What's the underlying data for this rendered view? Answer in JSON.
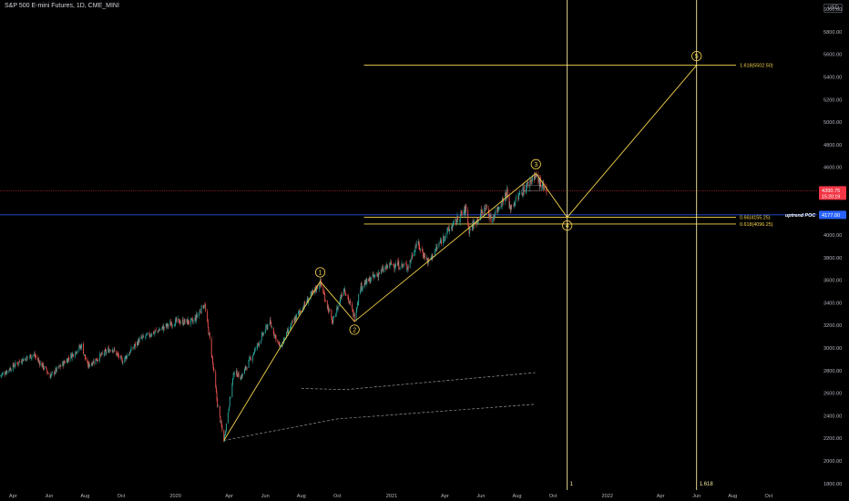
{
  "header": {
    "title": "S&P 500 E-mini Futures, 1D, CME_MINI",
    "currency": "USD"
  },
  "chart_data": {
    "type": "candlestick",
    "title": "S&P 500 E-mini Futures, 1D, CME_MINI",
    "y_ticks": [
      1800,
      2000,
      2200,
      2400,
      2600,
      2800,
      3000,
      3200,
      3400,
      3600,
      3800,
      4000,
      4200,
      4400,
      4600,
      4800,
      5000,
      5200,
      5400,
      5600,
      5800,
      6000
    ],
    "y_tick_labels": [
      "1800.00",
      "2000.00",
      "2200.00",
      "2400.00",
      "2600.00",
      "2800.00",
      "3000.00",
      "3200.00",
      "3400.00",
      "3600.00",
      "3800.00",
      "4000.00",
      "4200.00",
      "4400.00",
      "4600.00",
      "4800.00",
      "5000.00",
      "5200.00",
      "5400.00",
      "5600.00",
      "5800.00",
      "6000.00"
    ],
    "ylim": [
      1740,
      6080
    ],
    "x_range": [
      "2019-03-10",
      "2022-12-22"
    ],
    "x_ticks": [
      {
        "date": "2019-04-01",
        "label": "Apr"
      },
      {
        "date": "2019-06-01",
        "label": "Jun"
      },
      {
        "date": "2019-08-01",
        "label": "Aug"
      },
      {
        "date": "2019-10-01",
        "label": "Oct"
      },
      {
        "date": "2020-01-01",
        "label": "2020"
      },
      {
        "date": "2020-04-01",
        "label": "Apr"
      },
      {
        "date": "2020-06-01",
        "label": "Jun"
      },
      {
        "date": "2020-08-01",
        "label": "Aug"
      },
      {
        "date": "2020-10-01",
        "label": "Oct"
      },
      {
        "date": "2021-01-01",
        "label": "2021"
      },
      {
        "date": "2021-04-01",
        "label": "Apr"
      },
      {
        "date": "2021-06-01",
        "label": "Jun"
      },
      {
        "date": "2021-08-01",
        "label": "Aug"
      },
      {
        "date": "2021-10-01",
        "label": "Oct"
      },
      {
        "date": "2022-01-01",
        "label": "2022"
      },
      {
        "date": "2022-04-01",
        "label": "Apr"
      },
      {
        "date": "2022-06-01",
        "label": "Jun"
      },
      {
        "date": "2022-08-01",
        "label": "Aug"
      },
      {
        "date": "2022-10-01",
        "label": "Oct"
      }
    ],
    "price_path": [
      [
        "2019-03-10",
        2750
      ],
      [
        "2019-04-15",
        2890
      ],
      [
        "2019-05-06",
        2940
      ],
      [
        "2019-06-03",
        2750
      ],
      [
        "2019-07-26",
        3020
      ],
      [
        "2019-08-05",
        2840
      ],
      [
        "2019-09-15",
        3000
      ],
      [
        "2019-10-03",
        2880
      ],
      [
        "2019-11-01",
        3070
      ],
      [
        "2019-12-31",
        3230
      ],
      [
        "2020-01-31",
        3230
      ],
      [
        "2020-02-19",
        3390
      ],
      [
        "2020-03-01",
        3000
      ],
      [
        "2020-03-12",
        2500
      ],
      [
        "2020-03-23",
        2180
      ],
      [
        "2020-04-09",
        2790
      ],
      [
        "2020-04-21",
        2740
      ],
      [
        "2020-06-08",
        3230
      ],
      [
        "2020-06-26",
        3000
      ],
      [
        "2020-07-20",
        3250
      ],
      [
        "2020-09-02",
        3580
      ],
      [
        "2020-09-23",
        3220
      ],
      [
        "2020-10-12",
        3540
      ],
      [
        "2020-10-30",
        3270
      ],
      [
        "2020-11-09",
        3540
      ],
      [
        "2020-12-31",
        3740
      ],
      [
        "2021-01-29",
        3720
      ],
      [
        "2021-02-12",
        3930
      ],
      [
        "2021-03-04",
        3760
      ],
      [
        "2021-04-01",
        4000
      ],
      [
        "2021-05-07",
        4230
      ],
      [
        "2021-05-12",
        4040
      ],
      [
        "2021-06-10",
        4250
      ],
      [
        "2021-06-18",
        4130
      ],
      [
        "2021-07-15",
        4380
      ],
      [
        "2021-07-19",
        4230
      ],
      [
        "2021-08-31",
        4530
      ],
      [
        "2021-09-09",
        4460
      ],
      [
        "2021-09-20",
        4360
      ]
    ],
    "support_band": {
      "start": "2021-04-20",
      "end": "2021-08-27",
      "top": 4240,
      "bottom": 4050
    },
    "elliott_wave": [
      {
        "label": "1",
        "date": "2020-09-02",
        "value": 3588
      },
      {
        "label": "2",
        "date": "2020-10-30",
        "value": 3233
      },
      {
        "label": "3",
        "date": "2021-09-02",
        "value": 4545
      },
      {
        "label": "4",
        "date": "2021-10-25",
        "value": 4155.25
      },
      {
        "label": "5",
        "date": "2022-06-01",
        "value": 5502.5
      }
    ],
    "wave_start": {
      "date": "2020-03-23",
      "value": 2180
    },
    "fib_levels": [
      {
        "label": "1.618(5502.50)",
        "value": 5502.5,
        "start": "2020-11-15"
      },
      {
        "label": "0.66(4155.25)",
        "value": 4155.25,
        "start": "2020-11-15"
      },
      {
        "label": "0.618(4096.25)",
        "value": 4096.25,
        "start": "2020-11-15"
      }
    ],
    "vertical_markers": [
      {
        "label": "1",
        "date": "2021-10-25"
      },
      {
        "label": "1.618",
        "date": "2022-06-01"
      }
    ],
    "trendlines_dashed": [
      {
        "from": [
          "2020-03-23",
          2180
        ],
        "to": [
          "2020-10-01",
          2370
        ],
        "to2": [
          "2021-09-01",
          2500
        ]
      },
      {
        "from": [
          "2020-08-01",
          2640
        ],
        "to": [
          "2020-10-15",
          2630
        ],
        "to2": [
          "2021-09-01",
          2780
        ]
      }
    ],
    "uptrend_poc": {
      "label": "uptrend POC",
      "value": 4177
    },
    "current_price": {
      "value": 4390.75,
      "label": "4390.75",
      "countdown": "15:20:19"
    },
    "poc_price_label": "4177.00",
    "colors": {
      "up": "#26a69a",
      "down": "#ef5350",
      "wave": "#f7d44a",
      "fib": "#f7d44a",
      "poc_line": "#2962ff",
      "price_line": "#f23645",
      "grid_text": "#b2b5be"
    }
  }
}
